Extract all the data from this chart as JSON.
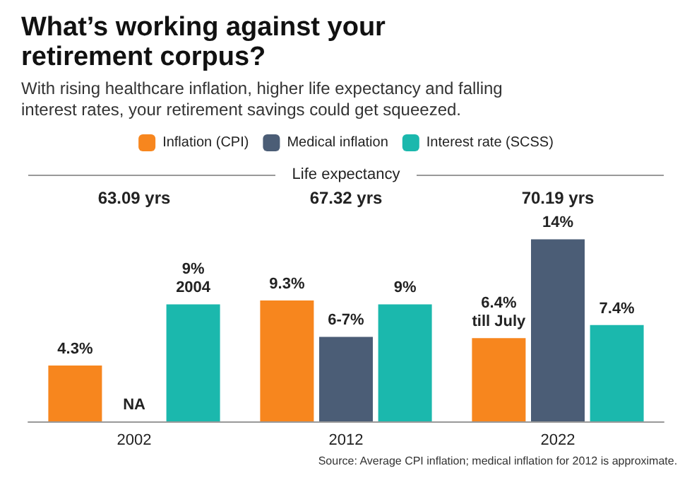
{
  "chart_data": {
    "type": "bar",
    "title": "What’s working against your retirement corpus?",
    "subtitle": "With rising healthcare inflation, higher life expectancy and falling interest rates, your retirement savings could get squeezed.",
    "categories": [
      "2002",
      "2012",
      "2022"
    ],
    "series": [
      {
        "name": "Inflation (CPI)",
        "color": "#f7861e",
        "values": [
          4.3,
          9.3,
          6.4
        ],
        "value_labels": [
          "4.3%",
          "9.3%",
          "6.4%\ntill July"
        ]
      },
      {
        "name": "Medical inflation",
        "color": "#4b5d76",
        "values": [
          null,
          6.5,
          14
        ],
        "value_labels": [
          "NA",
          "6-7%",
          "14%"
        ]
      },
      {
        "name": "Interest rate (SCSS)",
        "color": "#1bb8ad",
        "values": [
          9,
          9,
          7.4
        ],
        "value_labels": [
          "9%\n2004",
          "9%",
          "7.4%"
        ]
      }
    ],
    "annotations": [
      "Life expectancy",
      "63.09 yrs",
      "67.32 yrs",
      "70.19 yrs",
      "Source: Average CPI inflation; medical inflation for 2012 is approximate."
    ],
    "legend": "top"
  }
}
